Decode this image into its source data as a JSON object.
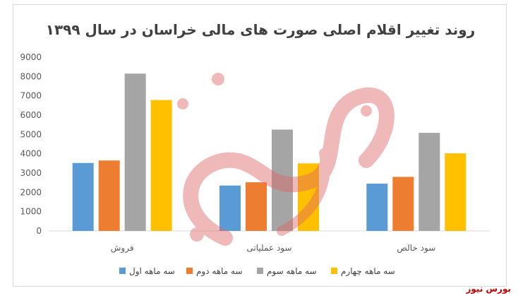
{
  "source_label": "بورس نیوز",
  "watermark_text": "بورس نیوز",
  "chart_data": {
    "type": "bar",
    "title": "روند تغییر اقلام اصلی صورت های مالی خراسان در سال ۱۳۹۹",
    "categories": [
      "فروش",
      "سود عملیاتی",
      "سود خالص"
    ],
    "series": [
      {
        "name": "سه ماهه اول",
        "color": "#5b9bd5",
        "values": [
          3520,
          2350,
          2450
        ]
      },
      {
        "name": "سه ماهه دوم",
        "color": "#ed7d31",
        "values": [
          3650,
          2520,
          2800
        ]
      },
      {
        "name": "سه ماهه سوم",
        "color": "#a5a5a5",
        "values": [
          8150,
          5250,
          5080
        ]
      },
      {
        "name": "سه ماهه چهارم",
        "color": "#ffc000",
        "values": [
          6780,
          3500,
          4020
        ]
      }
    ],
    "y_ticks": [
      "0",
      "1000",
      "2000",
      "3000",
      "4000",
      "5000",
      "6000",
      "7000",
      "8000",
      "9000"
    ],
    "ylim": [
      0,
      9000
    ],
    "grid": false,
    "legend_position": "bottom"
  }
}
